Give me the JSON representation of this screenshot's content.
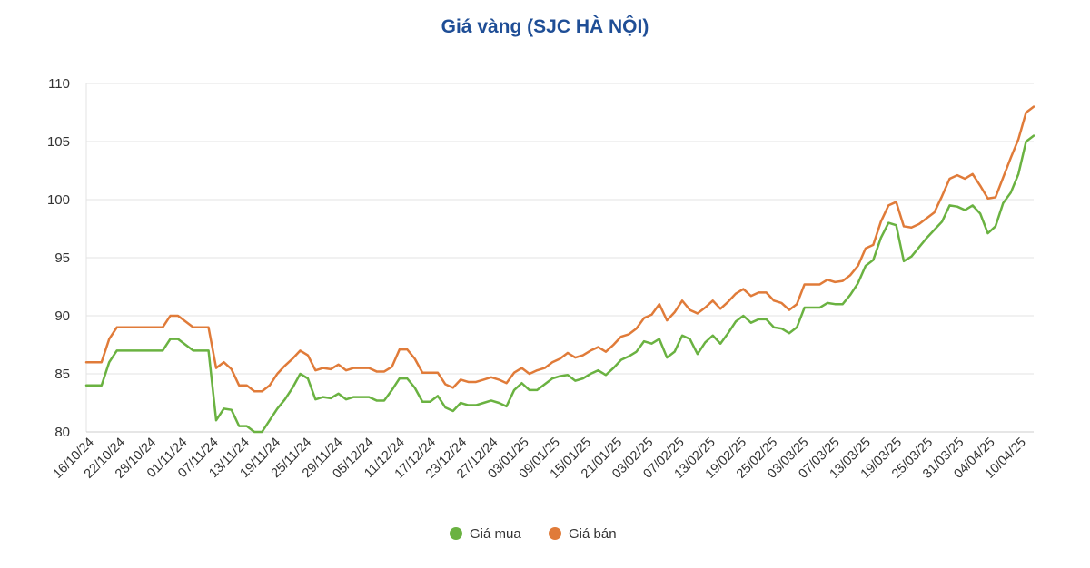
{
  "chart_data": {
    "type": "line",
    "title": "Giá vàng (SJC HÀ NỘI)",
    "xlabel": "",
    "ylabel": "",
    "ylim": [
      80,
      110
    ],
    "yticks": [
      80,
      85,
      90,
      95,
      100,
      105,
      110
    ],
    "grid": true,
    "legend_position": "bottom",
    "x_tick_labels": [
      "16/10/24",
      "22/10/24",
      "28/10/24",
      "01/11/24",
      "07/11/24",
      "13/11/24",
      "19/11/24",
      "25/11/24",
      "29/11/24",
      "05/12/24",
      "11/12/24",
      "17/12/24",
      "23/12/24",
      "27/12/24",
      "03/01/25",
      "09/01/25",
      "15/01/25",
      "21/01/25",
      "03/02/25",
      "07/02/25",
      "13/02/25",
      "19/02/25",
      "25/02/25",
      "03/03/25",
      "07/03/25",
      "13/03/25",
      "19/03/25",
      "25/03/25",
      "31/03/25",
      "04/04/25",
      "10/04/25"
    ],
    "series": [
      {
        "name": "Giá mua",
        "color": "#6ab241",
        "values": [
          84,
          84,
          84,
          86,
          87,
          87,
          87,
          87,
          87,
          87,
          87,
          88,
          88,
          87.5,
          87,
          87,
          87,
          81,
          82,
          81.9,
          80.5,
          80.5,
          80,
          80,
          81,
          82,
          82.8,
          83.8,
          85,
          84.6,
          82.8,
          83,
          82.9,
          83.3,
          82.8,
          83,
          83,
          83,
          82.7,
          82.7,
          83.6,
          84.6,
          84.6,
          83.8,
          82.6,
          82.6,
          83.1,
          82.1,
          81.8,
          82.5,
          82.3,
          82.3,
          82.5,
          82.7,
          82.5,
          82.2,
          83.6,
          84.2,
          83.6,
          83.6,
          84.1,
          84.6,
          84.8,
          84.9,
          84.4,
          84.6,
          85,
          85.3,
          84.9,
          85.5,
          86.2,
          86.5,
          86.9,
          87.8,
          87.6,
          88,
          86.4,
          86.9,
          88.3,
          88,
          86.7,
          87.7,
          88.3,
          87.6,
          88.5,
          89.5,
          90,
          89.4,
          89.7,
          89.7,
          89,
          88.9,
          88.5,
          89,
          90.7,
          90.7,
          90.7,
          91.1,
          91,
          91,
          91.8,
          92.8,
          94.3,
          94.8,
          96.7,
          98,
          97.8,
          94.7,
          95.1,
          95.9,
          96.7,
          97.4,
          98.1,
          99.5,
          99.4,
          99.1,
          99.5,
          98.8,
          97.1,
          97.7,
          99.7,
          100.6,
          102.2,
          105,
          105.5
        ]
      },
      {
        "name": "Giá bán",
        "color": "#e07b39",
        "values": [
          86,
          86,
          86,
          88,
          89,
          89,
          89,
          89,
          89,
          89,
          89,
          90,
          90,
          89.5,
          89,
          89,
          89,
          85.5,
          86,
          85.4,
          84,
          84,
          83.5,
          83.5,
          84,
          85,
          85.7,
          86.3,
          87,
          86.6,
          85.3,
          85.5,
          85.4,
          85.8,
          85.3,
          85.5,
          85.5,
          85.5,
          85.2,
          85.2,
          85.6,
          87.1,
          87.1,
          86.3,
          85.1,
          85.1,
          85.1,
          84.1,
          83.8,
          84.5,
          84.3,
          84.3,
          84.5,
          84.7,
          84.5,
          84.2,
          85.1,
          85.5,
          85,
          85.3,
          85.5,
          86,
          86.3,
          86.8,
          86.4,
          86.6,
          87,
          87.3,
          86.9,
          87.5,
          88.2,
          88.4,
          88.9,
          89.8,
          90.1,
          91,
          89.6,
          90.3,
          91.3,
          90.5,
          90.2,
          90.7,
          91.3,
          90.6,
          91.2,
          91.9,
          92.3,
          91.7,
          92,
          92,
          91.3,
          91.1,
          90.5,
          91,
          92.7,
          92.7,
          92.7,
          93.1,
          92.9,
          93,
          93.5,
          94.3,
          95.8,
          96.1,
          98.1,
          99.5,
          99.8,
          97.7,
          97.6,
          97.9,
          98.4,
          98.9,
          100.3,
          101.8,
          102.1,
          101.8,
          102.2,
          101.2,
          100.1,
          100.2,
          101.9,
          103.6,
          105.2,
          107.5,
          108
        ]
      }
    ]
  }
}
